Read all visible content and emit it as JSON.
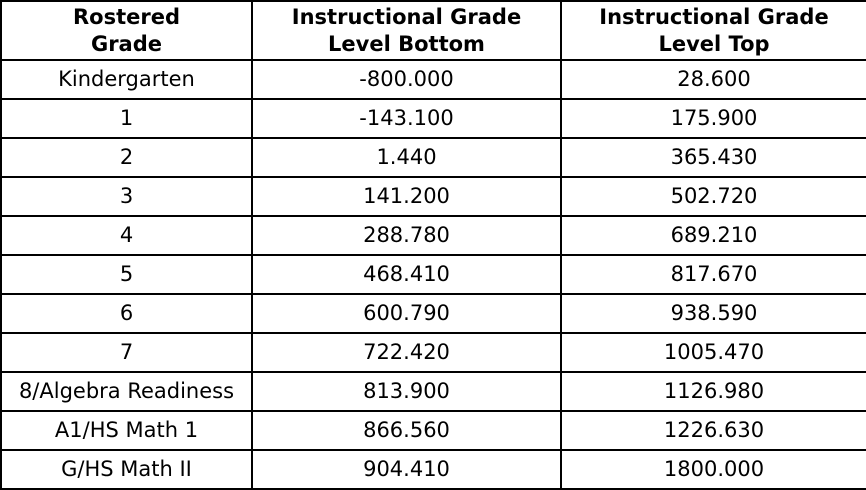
{
  "table": {
    "headers": [
      {
        "id": "rostered-grade",
        "lines": [
          "Rostered",
          "Grade"
        ]
      },
      {
        "id": "instr-level-bottom",
        "lines": [
          "Instructional Grade",
          "Level Bottom"
        ]
      },
      {
        "id": "instr-level-top",
        "lines": [
          "Instructional Grade",
          "Level Top"
        ]
      }
    ],
    "rows": [
      {
        "grade": "Kindergarten",
        "bottom": "-800.000",
        "top": "28.600"
      },
      {
        "grade": "1",
        "bottom": "-143.100",
        "top": "175.900"
      },
      {
        "grade": "2",
        "bottom": "1.440",
        "top": "365.430"
      },
      {
        "grade": "3",
        "bottom": "141.200",
        "top": "502.720"
      },
      {
        "grade": "4",
        "bottom": "288.780",
        "top": "689.210"
      },
      {
        "grade": "5",
        "bottom": "468.410",
        "top": "817.670"
      },
      {
        "grade": "6",
        "bottom": "600.790",
        "top": "938.590"
      },
      {
        "grade": "7",
        "bottom": "722.420",
        "top": "1005.470"
      },
      {
        "grade": "8/Algebra Readiness",
        "bottom": "813.900",
        "top": "1126.980"
      },
      {
        "grade": "A1/HS Math 1",
        "bottom": "866.560",
        "top": "1226.630"
      },
      {
        "grade": "G/HS Math II",
        "bottom": "904.410",
        "top": "1800.000"
      }
    ],
    "colors": {
      "border": "#000000",
      "text": "#000000",
      "background": "#ffffff"
    }
  },
  "chart_data": {
    "type": "table",
    "title": "",
    "columns": [
      "Rostered Grade",
      "Instructional Grade Level Bottom",
      "Instructional Grade Level Top"
    ],
    "rows": [
      [
        "Kindergarten",
        -800.0,
        28.6
      ],
      [
        "1",
        -143.1,
        175.9
      ],
      [
        "2",
        1.44,
        365.43
      ],
      [
        "3",
        141.2,
        502.72
      ],
      [
        "4",
        288.78,
        689.21
      ],
      [
        "5",
        468.41,
        817.67
      ],
      [
        "6",
        600.79,
        938.59
      ],
      [
        "7",
        722.42,
        1005.47
      ],
      [
        "8/Algebra Readiness",
        813.9,
        1126.98
      ],
      [
        "A1/HS Math 1",
        866.56,
        1226.63
      ],
      [
        "G/HS Math II",
        904.41,
        1800.0
      ]
    ],
    "layout": {
      "grid": true,
      "legend": "none"
    }
  }
}
